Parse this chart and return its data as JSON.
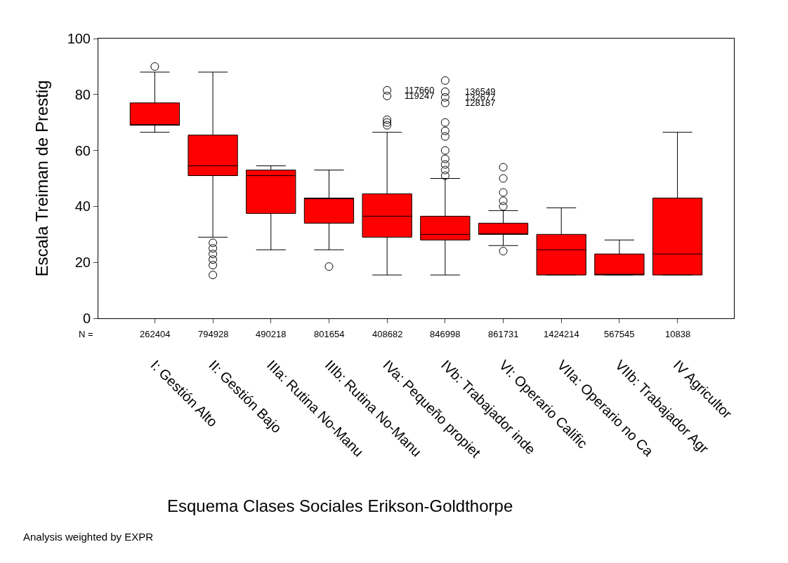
{
  "chart_data": {
    "type": "box",
    "xlabel": "Esquema Clases Sociales Erikson-Goldthorpe",
    "ylabel": "Escala Treiman de Prestig",
    "categories": [
      "I: Gestión Alto",
      "II: Gestión Bajo",
      "IIIa: Rutina No-Manu",
      "IIIb: Rutina No-Manu",
      "IVa: Pequeño propiet",
      "IVb: Trabajador inde",
      "VI: Operario Calific",
      "VIIa: Operario no Ca",
      "VIIb: Trabajador Agr",
      "IV Agricultor"
    ],
    "color": "#ff0000",
    "boxes": [
      {
        "low": 66.5,
        "q1": 69,
        "median": 69,
        "q3": 77,
        "high": 88,
        "outliers": [
          90
        ]
      },
      {
        "low": 29,
        "q1": 51,
        "median": 54.5,
        "q3": 65.5,
        "high": 88,
        "outliers": [
          27,
          25,
          23,
          21,
          19,
          15.5
        ]
      },
      {
        "low": 24.5,
        "q1": 37.5,
        "median": 51,
        "q3": 53,
        "high": 54.5
      },
      {
        "low": 24.5,
        "q1": 34,
        "median": 43,
        "q3": 43,
        "high": 53,
        "outliers": [
          18.5
        ]
      },
      {
        "low": 15.5,
        "q1": 29,
        "median": 36.5,
        "q3": 44.5,
        "high": 66.5,
        "outliers": [
          69,
          70,
          71,
          79.5,
          81.5
        ]
      },
      {
        "low": 15.5,
        "q1": 28,
        "median": 30,
        "q3": 36.5,
        "high": 50,
        "outliers": [
          51,
          53,
          55,
          57,
          60,
          65,
          67,
          70,
          77,
          79,
          81,
          85
        ]
      },
      {
        "low": 26,
        "q1": 30,
        "median": 30,
        "q3": 34,
        "high": 38.5,
        "outliers": [
          24,
          40,
          42,
          45,
          50,
          54
        ]
      },
      {
        "low": 15.5,
        "q1": 15.5,
        "median": 24.5,
        "q3": 30,
        "high": 39.5
      },
      {
        "low": 15.5,
        "q1": 15.5,
        "median": 15.5,
        "q3": 23,
        "high": 28
      },
      {
        "low": 15.5,
        "q1": 15.5,
        "median": 23,
        "q3": 43,
        "high": 66.5
      }
    ],
    "ylim": [
      0,
      100
    ],
    "yticks": [
      0,
      20,
      40,
      60,
      80,
      100
    ],
    "grid": false,
    "legend": false,
    "marker": "circle",
    "annotations": [
      "117660",
      "119247",
      "136549",
      "132677",
      "128187",
      "N =",
      "262404",
      "794928",
      "490218",
      "801654",
      "408682",
      "846998",
      "861731",
      "1424214",
      "567545",
      "10838",
      "Analysis weighted by EXPR"
    ]
  }
}
